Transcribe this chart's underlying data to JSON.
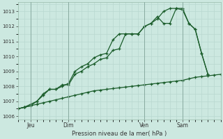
{
  "background_color": "#cce8e0",
  "grid_color": "#b8d8d0",
  "line_color": "#1a5c2a",
  "title": "Pression niveau de la mer( hPa )",
  "ylim": [
    1005.8,
    1013.6
  ],
  "yticks": [
    1006,
    1007,
    1008,
    1009,
    1010,
    1011,
    1012,
    1013
  ],
  "day_labels": [
    "Jeu",
    "Dim",
    "Ven",
    "Sam"
  ],
  "day_positions": [
    2,
    8,
    20,
    26
  ],
  "xlim": [
    0,
    32
  ],
  "series_slow": {
    "x": [
      0,
      1,
      2,
      3,
      4,
      5,
      6,
      7,
      8,
      9,
      10,
      11,
      12,
      13,
      14,
      15,
      16,
      17,
      18,
      19,
      20,
      21,
      22,
      23,
      24,
      25,
      26,
      27,
      28,
      29,
      30,
      31,
      32
    ],
    "y": [
      1006.5,
      1006.6,
      1006.7,
      1006.8,
      1006.9,
      1007.0,
      1007.1,
      1007.2,
      1007.3,
      1007.4,
      1007.5,
      1007.6,
      1007.7,
      1007.75,
      1007.8,
      1007.85,
      1007.9,
      1007.95,
      1008.0,
      1008.05,
      1008.1,
      1008.15,
      1008.2,
      1008.25,
      1008.3,
      1008.35,
      1008.4,
      1008.5,
      1008.6,
      1008.65,
      1008.7,
      1008.75,
      1008.8
    ]
  },
  "series_line1": {
    "x": [
      0,
      1,
      2,
      3,
      4,
      5,
      6,
      7,
      8,
      9,
      10,
      11,
      12,
      13,
      14,
      15,
      16,
      17,
      18,
      19,
      20,
      21,
      22,
      23,
      24,
      25,
      26,
      27,
      28,
      29,
      30
    ],
    "y": [
      1006.5,
      1006.6,
      1006.8,
      1007.0,
      1007.5,
      1007.8,
      1007.8,
      1008.1,
      1008.1,
      1008.8,
      1009.0,
      1009.3,
      1009.5,
      1009.8,
      1009.9,
      1010.4,
      1010.5,
      1011.5,
      1011.5,
      1011.5,
      1012.0,
      1012.2,
      1012.5,
      1013.0,
      1013.2,
      1013.2,
      1013.1,
      1012.2,
      1011.8,
      1010.2,
      1008.8
    ]
  },
  "series_line2": {
    "x": [
      0,
      1,
      2,
      3,
      4,
      5,
      6,
      7,
      8,
      9,
      10,
      11,
      12,
      13,
      14,
      15,
      16,
      17,
      18,
      19,
      20,
      21,
      22,
      23,
      24,
      25,
      26,
      27,
      28,
      29,
      30
    ],
    "y": [
      1006.5,
      1006.6,
      1006.7,
      1007.0,
      1007.4,
      1007.8,
      1007.8,
      1008.0,
      1008.2,
      1009.0,
      1009.3,
      1009.5,
      1009.9,
      1010.1,
      1010.2,
      1011.1,
      1011.5,
      1011.5,
      1011.5,
      1011.5,
      1012.0,
      1012.2,
      1012.65,
      1012.2,
      1012.2,
      1013.2,
      1013.2,
      1012.2,
      1011.8,
      1010.2,
      1008.8
    ]
  }
}
